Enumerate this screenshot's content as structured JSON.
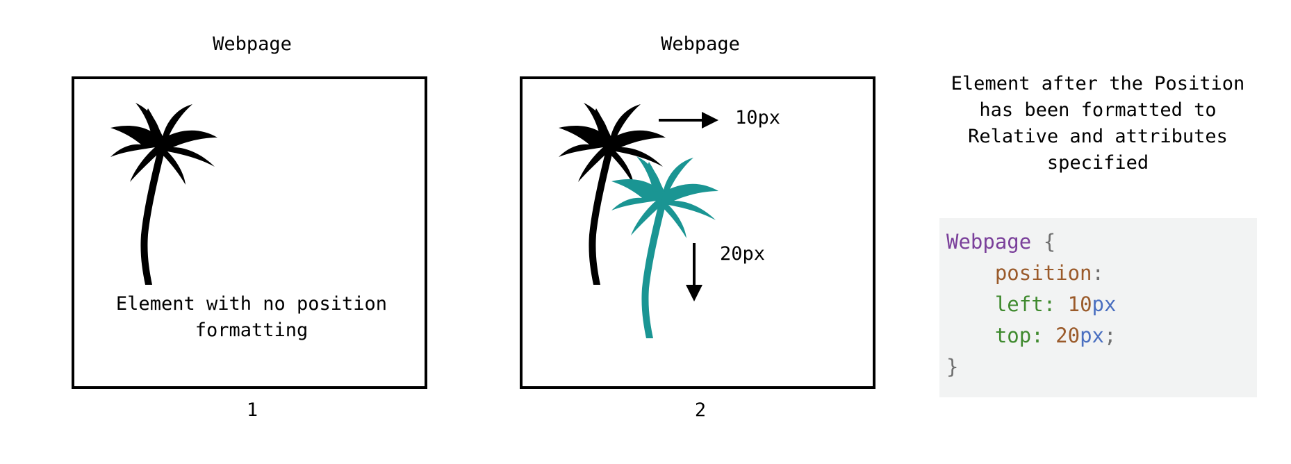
{
  "panel1": {
    "title": "Webpage",
    "caption": "Element with no position formatting",
    "number": "1"
  },
  "panel2": {
    "title": "Webpage",
    "number": "2",
    "arrow_right_label": "10px",
    "arrow_down_label": "20px"
  },
  "side_description": "Element after the Position has been formatted to Relative and attributes specified",
  "code": {
    "selector": "Webpage",
    "open_brace": "{",
    "prop1": "position",
    "prop1_colon": ":",
    "prop2": "left",
    "prop2_colon": ":",
    "prop2_num": "10",
    "prop2_unit": "px",
    "prop3": "top",
    "prop3_colon": ":",
    "prop3_num": "20",
    "prop3_unit": "px",
    "prop3_semicolon": ";",
    "close_brace": "}"
  },
  "colors": {
    "original_tree": "#000000",
    "moved_tree": "#1a9593"
  },
  "icons": [
    "palm-tree-icon",
    "arrow-right-icon",
    "arrow-down-icon"
  ]
}
